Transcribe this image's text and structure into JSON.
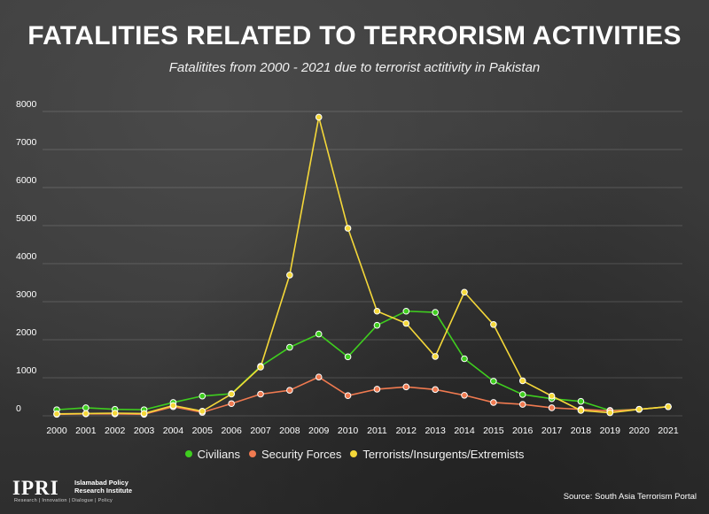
{
  "title": "FATALITIES RELATED TO TERRORISM ACTIVITIES",
  "subtitle": "Fatalitites from 2000 - 2021 due to terrorist actitivity in Pakistan",
  "logo": {
    "mark": "IPRI",
    "name_line1": "Islamabad Policy",
    "name_line2": "Research Institute",
    "tagline": "Research | Innovation | Dialogue | Policy"
  },
  "source": "Source: South Asia Terrorism Portal",
  "chart_data": {
    "type": "line",
    "title": "FATALITIES RELATED TO TERRORISM ACTIVITIES",
    "subtitle": "Fatalitites from 2000 - 2021 due to terrorist actitivity in Pakistan",
    "xlabel": "",
    "ylabel": "",
    "ylim": [
      0,
      8000
    ],
    "yticks": [
      0,
      1000,
      2000,
      3000,
      4000,
      5000,
      6000,
      7000,
      8000
    ],
    "grid": "horizontal",
    "legend_position": "bottom",
    "categories": [
      "2000",
      "2001",
      "2002",
      "2003",
      "2004",
      "2005",
      "2006",
      "2007",
      "2008",
      "2009",
      "2010",
      "2011",
      "2012",
      "2013",
      "2014",
      "2015",
      "2016",
      "2017",
      "2018",
      "2019",
      "2020",
      "2021"
    ],
    "series": [
      {
        "name": "Civilians",
        "color": "#3fce1f",
        "values": [
          160,
          210,
          170,
          160,
          350,
          520,
          580,
          1300,
          1800,
          2150,
          1550,
          2380,
          2750,
          2720,
          1500,
          910,
          560,
          450,
          380,
          140,
          170,
          240
        ]
      },
      {
        "name": "Security Forces",
        "color": "#f07a50",
        "values": [
          40,
          50,
          50,
          40,
          240,
          90,
          320,
          570,
          670,
          1020,
          530,
          700,
          760,
          690,
          540,
          350,
          300,
          210,
          170,
          130,
          170,
          240
        ]
      },
      {
        "name": "Terrorists/Insurgents/Extremists",
        "color": "#f5d839",
        "values": [
          50,
          60,
          70,
          60,
          270,
          120,
          570,
          1280,
          3700,
          7850,
          4930,
          2750,
          2430,
          1560,
          3250,
          2400,
          920,
          520,
          140,
          80,
          170,
          240
        ]
      }
    ]
  }
}
